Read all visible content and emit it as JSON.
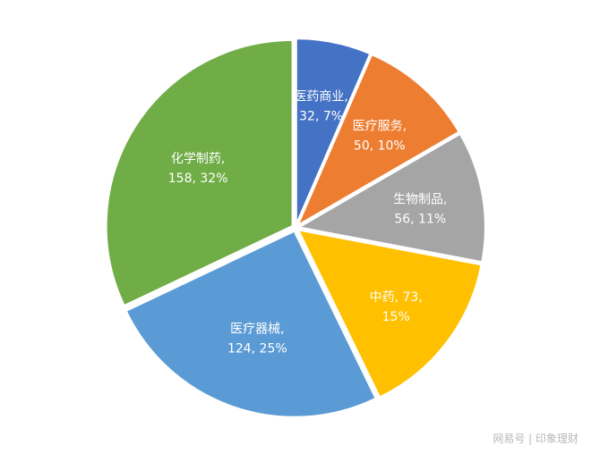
{
  "chart_data": {
    "type": "pie",
    "start": "12 o'clock, clockwise",
    "slices": [
      {
        "name": "医药商业",
        "value": 32,
        "percent": "7%",
        "color": "#4472C4",
        "label_lines": [
          "医药商业,",
          "32, 7%"
        ]
      },
      {
        "name": "医疗服务",
        "value": 50,
        "percent": "10%",
        "color": "#ED7D31",
        "label_lines": [
          "医疗服务,",
          "50, 10%"
        ]
      },
      {
        "name": "生物制品",
        "value": 56,
        "percent": "11%",
        "color": "#A5A5A5",
        "label_lines": [
          "生物制品,",
          "56, 11%"
        ]
      },
      {
        "name": "中药",
        "value": 73,
        "percent": "15%",
        "color": "#FFC000",
        "label_lines": [
          "中药, 73,",
          "15%"
        ]
      },
      {
        "name": "医疗器械",
        "value": 124,
        "percent": "25%",
        "color": "#5B9BD5",
        "label_lines": [
          "医疗器械,",
          "124, 25%"
        ]
      },
      {
        "name": "化学制药",
        "value": 158,
        "percent": "32%",
        "color": "#70AD47",
        "label_lines": [
          "化学制药,",
          "158, 32%"
        ]
      }
    ]
  },
  "watermark": "网易号 | 印象理财"
}
